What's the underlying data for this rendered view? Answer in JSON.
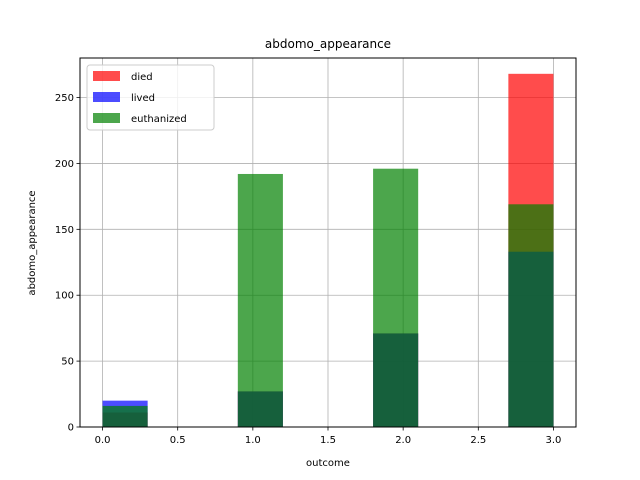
{
  "chart_data": {
    "type": "bar",
    "title": "abdomo_appearance",
    "xlabel": "outcome",
    "ylabel": "abdomo_appearance",
    "xlim": [
      -0.15,
      3.15
    ],
    "ylim": [
      0,
      280
    ],
    "xticks": [
      0.0,
      0.5,
      1.0,
      1.5,
      2.0,
      2.5,
      3.0
    ],
    "xtick_labels": [
      "0.0",
      "0.5",
      "1.0",
      "1.5",
      "2.0",
      "2.5",
      "3.0"
    ],
    "yticks": [
      0,
      50,
      100,
      150,
      200,
      250
    ],
    "ytick_labels": [
      "0",
      "50",
      "100",
      "150",
      "200",
      "250"
    ],
    "grid": true,
    "legend_position": "top-left",
    "bin_edges": [
      0.0,
      0.3,
      0.6,
      0.9,
      1.2,
      1.5,
      1.8,
      2.1,
      2.4,
      2.7,
      3.0
    ],
    "series": [
      {
        "name": "died",
        "color": "#ff0000",
        "opacity": 0.7,
        "values": [
          11,
          0,
          0,
          27,
          0,
          0,
          71,
          0,
          0,
          268
        ]
      },
      {
        "name": "lived",
        "color": "#0000ff",
        "opacity": 0.7,
        "values": [
          20,
          0,
          0,
          27,
          0,
          0,
          71,
          0,
          0,
          133
        ]
      },
      {
        "name": "euthanized",
        "color": "#008000",
        "opacity": 0.7,
        "values": [
          16,
          0,
          0,
          192,
          0,
          0,
          196,
          0,
          0,
          169
        ]
      }
    ]
  }
}
